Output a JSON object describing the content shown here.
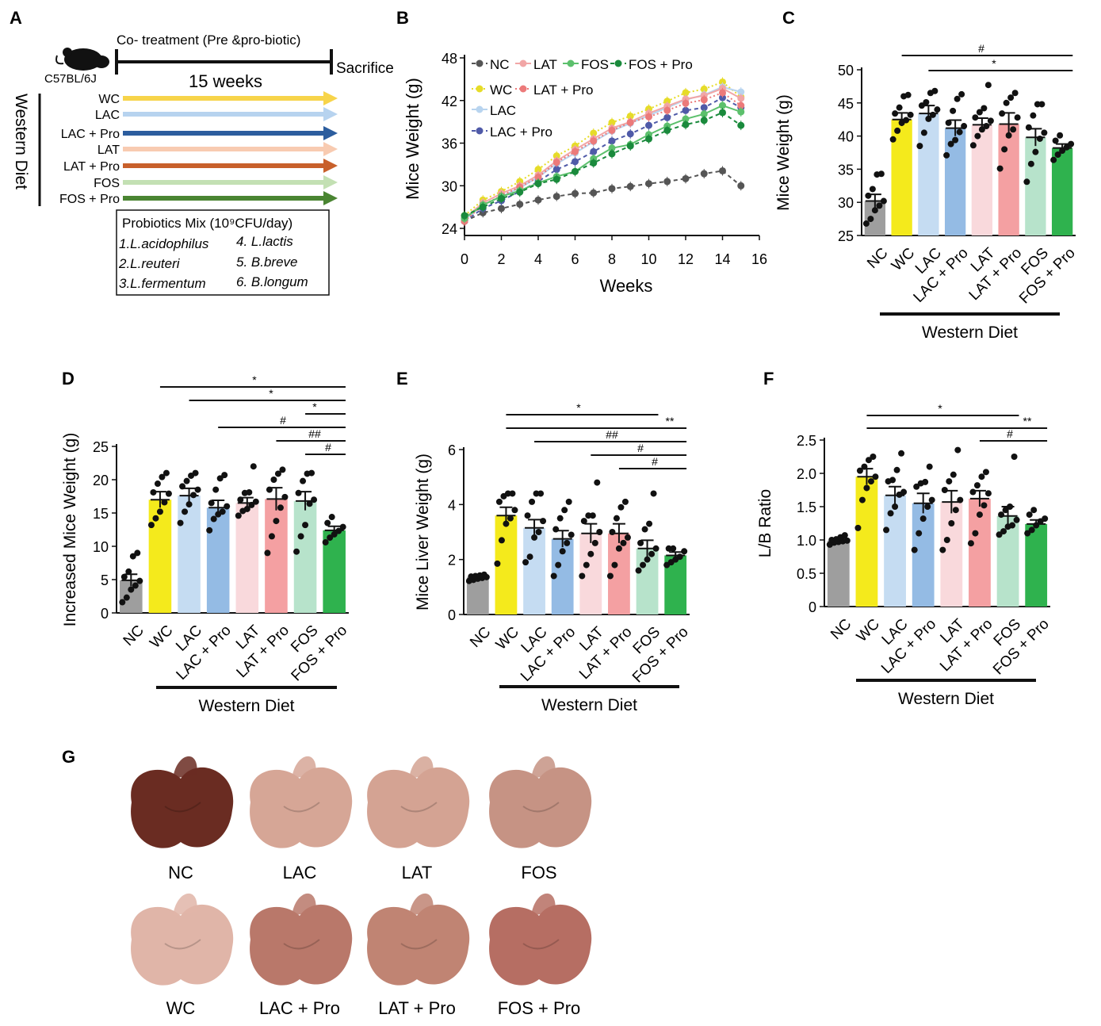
{
  "panels": {
    "A": "A",
    "B": "B",
    "C": "C",
    "D": "D",
    "E": "E",
    "F": "F",
    "G": "G"
  },
  "panel_a": {
    "strain": "C57BL/6J",
    "treatment_label": "Co- treatment (Pre &pro-biotic)",
    "duration": "15 weeks",
    "endpoint": "Sacrifice",
    "diet": "Western Diet",
    "groups": [
      {
        "name": "WC",
        "color": "#f7d44a"
      },
      {
        "name": "LAC",
        "color": "#b7d3ef"
      },
      {
        "name": "LAC + Pro",
        "color": "#2c5d9e"
      },
      {
        "name": "LAT",
        "color": "#f8cbb1"
      },
      {
        "name": "LAT + Pro",
        "color": "#c8602b"
      },
      {
        "name": "FOS",
        "color": "#c3e0b3"
      },
      {
        "name": "FOS + Pro",
        "color": "#4a8532"
      }
    ],
    "probiotics_title": "Probiotics Mix (10⁹CFU/day)",
    "probiotics": [
      "1.L.acidophilus",
      "2.L.reuteri",
      "3.L.fermentum",
      "4. L.lactis",
      "5. B.breve",
      "6. B.longum"
    ]
  },
  "chart_data": [
    {
      "panel": "B",
      "type": "line",
      "xlabel": "Weeks",
      "ylabel": "Mice Weight (g)",
      "xlim": [
        0,
        16
      ],
      "ylim": [
        23,
        48
      ],
      "xticks": [
        0,
        2,
        4,
        6,
        8,
        10,
        12,
        14,
        16
      ],
      "yticks": [
        24,
        30,
        36,
        42,
        48
      ],
      "x": [
        0,
        1,
        2,
        3,
        4,
        5,
        6,
        7,
        8,
        9,
        10,
        11,
        12,
        13,
        14,
        15
      ],
      "series": [
        {
          "name": "NC",
          "color": "#555555",
          "dash": "5,4",
          "values": [
            25.0,
            26.2,
            26.8,
            27.4,
            28.0,
            28.5,
            28.9,
            29.0,
            29.6,
            29.9,
            30.3,
            30.6,
            31.0,
            31.7,
            32.1,
            30.0
          ]
        },
        {
          "name": "WC",
          "color": "#e6dc28",
          "dash": "2,3",
          "values": [
            25.8,
            28.0,
            29.2,
            30.6,
            32.3,
            34.2,
            35.6,
            37.4,
            38.9,
            39.8,
            40.8,
            41.9,
            43.1,
            43.6,
            44.6,
            42.5
          ]
        },
        {
          "name": "LAC",
          "color": "#b8d4ef",
          "dash": "",
          "values": [
            25.2,
            27.3,
            28.5,
            29.7,
            31.2,
            33.1,
            34.6,
            36.2,
            37.7,
            38.8,
            39.9,
            41.0,
            42.1,
            42.8,
            43.9,
            43.2
          ]
        },
        {
          "name": "LAC + Pro",
          "color": "#4f5aa8",
          "dash": "5,4",
          "values": [
            25.0,
            26.8,
            27.9,
            29.2,
            30.6,
            32.3,
            33.4,
            34.8,
            36.3,
            37.3,
            38.5,
            39.6,
            40.6,
            41.0,
            42.4,
            41.0
          ]
        },
        {
          "name": "LAT",
          "color": "#f1a6a6",
          "dash": "",
          "values": [
            25.4,
            27.6,
            28.9,
            30.0,
            31.5,
            33.5,
            35.1,
            36.6,
            38.1,
            39.0,
            40.2,
            41.2,
            42.2,
            42.7,
            43.7,
            42.3
          ]
        },
        {
          "name": "LAT + Pro",
          "color": "#ec7a7a",
          "dash": "2,3",
          "values": [
            25.0,
            27.3,
            28.6,
            29.8,
            31.2,
            33.3,
            34.8,
            36.3,
            37.8,
            38.9,
            39.7,
            40.6,
            41.6,
            42.1,
            43.1,
            41.3
          ]
        },
        {
          "name": "FOS",
          "color": "#5cc06c",
          "dash": "",
          "values": [
            25.4,
            27.3,
            28.5,
            29.3,
            30.4,
            31.3,
            32.0,
            33.8,
            35.3,
            35.8,
            37.2,
            38.4,
            39.4,
            40.1,
            41.3,
            40.4
          ]
        },
        {
          "name": "FOS + Pro",
          "color": "#1a8a3c",
          "dash": "5,4",
          "values": [
            25.8,
            27.0,
            28.2,
            29.1,
            30.3,
            30.9,
            32.0,
            33.2,
            34.5,
            35.6,
            36.6,
            37.8,
            38.6,
            39.2,
            40.3,
            38.5
          ]
        }
      ],
      "legend": "top-left"
    },
    {
      "panel": "C",
      "type": "bar",
      "ylabel": "Mice Weight (g)",
      "ylim": [
        25,
        50
      ],
      "yticks": [
        25,
        30,
        35,
        40,
        45,
        50
      ],
      "categories": [
        "NC",
        "WC",
        "LAC",
        "LAC + Pro",
        "LAT",
        "LAT + Pro",
        "FOS",
        "FOS + Pro"
      ],
      "values": [
        30.2,
        42.5,
        43.4,
        41.2,
        41.7,
        41.8,
        39.8,
        38.2
      ],
      "sem": [
        1.0,
        1.0,
        1.2,
        1.2,
        1.0,
        1.7,
        1.3,
        0.6
      ],
      "points": [
        [
          26.8,
          27.5,
          28.8,
          29.5,
          30.2,
          31.0,
          32.0,
          34.2,
          34.3
        ],
        [
          39.5,
          40.8,
          42.0,
          42.4,
          43.2,
          43.4,
          44.3,
          46.0,
          46.2
        ],
        [
          38.5,
          40.5,
          42.6,
          43.2,
          44.0,
          44.6,
          45.1,
          46.5,
          46.8
        ],
        [
          37.1,
          38.8,
          39.4,
          40.6,
          41.5,
          42.0,
          43.8,
          45.6,
          46.3
        ],
        [
          38.6,
          40.0,
          41.0,
          41.5,
          42.3,
          42.8,
          43.6,
          44.2,
          47.7
        ],
        [
          35.1,
          38.0,
          40.1,
          41.0,
          42.8,
          43.4,
          45.0,
          45.8,
          46.5
        ],
        [
          33.1,
          35.8,
          37.6,
          39.6,
          40.5,
          41.3,
          43.1,
          44.8,
          44.8
        ],
        [
          36.4,
          37.2,
          37.8,
          38.3,
          38.8,
          39.3,
          40.1
        ]
      ],
      "colors": [
        "#9e9e9e",
        "#f4ea1c",
        "#c5dcf2",
        "#94bbe4",
        "#f9d9dc",
        "#f4a0a2",
        "#b7e3cb",
        "#2fb24e"
      ],
      "group_label": "Western Diet",
      "annotations": [
        {
          "from": 1,
          "to": 7,
          "label": "#"
        },
        {
          "from": 2,
          "to": 7,
          "label": "*"
        }
      ]
    },
    {
      "panel": "D",
      "type": "bar",
      "ylabel": "Increased Mice Weight  (g)",
      "ylim": [
        0,
        25
      ],
      "yticks": [
        0,
        5,
        10,
        15,
        20,
        25
      ],
      "categories": [
        "NC",
        "WC",
        "LAC",
        "LAC + Pro",
        "LAT",
        "LAT + Pro",
        "FOS",
        "FOS + Pro"
      ],
      "values": [
        4.9,
        17.0,
        17.6,
        15.8,
        16.5,
        17.1,
        16.8,
        12.4
      ],
      "sem": [
        0.9,
        1.2,
        1.1,
        1.1,
        0.8,
        1.7,
        1.4,
        0.6
      ],
      "points": [
        [
          1.6,
          2.3,
          3.5,
          4.1,
          4.8,
          5.4,
          6.2,
          8.5,
          9.0
        ],
        [
          13.2,
          14.2,
          15.2,
          16.6,
          17.9,
          18.1,
          19.4,
          20.4,
          21.0
        ],
        [
          13.5,
          15.2,
          16.3,
          17.7,
          18.5,
          19.0,
          19.8,
          20.6,
          21.0
        ],
        [
          12.4,
          14.1,
          14.8,
          15.2,
          16.0,
          16.5,
          18.5,
          20.2,
          20.7
        ],
        [
          14.6,
          15.3,
          15.6,
          16.2,
          16.7,
          17.0,
          18.0,
          18.1,
          22.0
        ],
        [
          9.0,
          11.5,
          13.8,
          15.8,
          17.4,
          18.5,
          20.0,
          20.9,
          21.5
        ],
        [
          9.2,
          11.5,
          13.2,
          16.4,
          17.0,
          18.0,
          19.8,
          20.9,
          21.0
        ],
        [
          10.6,
          11.3,
          11.8,
          12.3,
          12.9,
          13.5,
          14.4
        ]
      ],
      "colors": [
        "#9e9e9e",
        "#f4ea1c",
        "#c5dcf2",
        "#94bbe4",
        "#f9d9dc",
        "#f4a0a2",
        "#b7e3cb",
        "#2fb24e"
      ],
      "group_label": "Western Diet",
      "annotations": [
        {
          "from": 1,
          "to": 7,
          "label": "*"
        },
        {
          "from": 2,
          "to": 7,
          "label": "*"
        },
        {
          "from": 6,
          "to": 7,
          "label": "*"
        },
        {
          "from": 3,
          "to": 7,
          "label": "#"
        },
        {
          "from": 5,
          "to": 7,
          "label": "##"
        },
        {
          "from": 6,
          "to": 7,
          "label": "#"
        }
      ]
    },
    {
      "panel": "E",
      "type": "bar",
      "ylabel": "Mice Liver Weight  (g)",
      "ylim": [
        0,
        6
      ],
      "yticks": [
        0,
        2,
        4,
        6
      ],
      "categories": [
        "NC",
        "WC",
        "LAC",
        "LAC + Pro",
        "LAT",
        "LAT + Pro",
        "FOS",
        "FOS + Pro"
      ],
      "values": [
        1.35,
        3.6,
        3.15,
        2.75,
        2.95,
        2.95,
        2.4,
        2.15
      ],
      "sem": [
        0.05,
        0.3,
        0.3,
        0.3,
        0.35,
        0.35,
        0.3,
        0.12
      ],
      "points": [
        [
          1.22,
          1.26,
          1.3,
          1.33,
          1.36,
          1.38,
          1.4,
          1.42,
          1.45
        ],
        [
          1.85,
          2.7,
          3.3,
          3.5,
          3.8,
          4.1,
          4.3,
          4.4,
          4.4
        ],
        [
          1.9,
          2.1,
          2.8,
          3.0,
          3.4,
          3.6,
          4.1,
          4.4,
          4.4
        ],
        [
          1.4,
          1.8,
          2.3,
          2.6,
          2.9,
          3.1,
          3.5,
          3.8,
          4.1
        ],
        [
          1.4,
          1.8,
          2.2,
          2.6,
          3.0,
          3.4,
          3.6,
          3.6,
          4.8
        ],
        [
          1.4,
          1.8,
          2.4,
          2.6,
          2.8,
          3.0,
          3.5,
          3.9,
          4.1
        ],
        [
          1.6,
          1.8,
          2.0,
          2.2,
          2.4,
          2.6,
          3.1,
          3.3,
          4.4
        ],
        [
          1.8,
          1.9,
          2.0,
          2.1,
          2.3,
          2.4,
          2.4
        ]
      ],
      "colors": [
        "#9e9e9e",
        "#f4ea1c",
        "#c5dcf2",
        "#94bbe4",
        "#f9d9dc",
        "#f4a0a2",
        "#b7e3cb",
        "#2fb24e"
      ],
      "group_label": "Western Diet",
      "annotations": [
        {
          "from": 1,
          "to": 6,
          "label": "*"
        },
        {
          "from": 1,
          "to": 7,
          "label": "**"
        },
        {
          "from": 2,
          "to": 7,
          "label": "##"
        },
        {
          "from": 4,
          "to": 7,
          "label": "#"
        },
        {
          "from": 5,
          "to": 7,
          "label": "#"
        }
      ]
    },
    {
      "panel": "F",
      "type": "bar",
      "ylabel": "L/B Ratio",
      "ylim": [
        0,
        2.5
      ],
      "yticks": [
        0,
        0.5,
        1.0,
        1.5,
        2.0,
        2.5
      ],
      "ytick_labels": [
        "0",
        "0.5",
        "1.0",
        "1.5",
        "2.0",
        "2.5"
      ],
      "categories": [
        "NC",
        "WC",
        "LAC",
        "LAC + Pro",
        "LAT",
        "LAT + Pro",
        "FOS",
        "FOS + Pro"
      ],
      "values": [
        0.99,
        1.95,
        1.67,
        1.55,
        1.57,
        1.62,
        1.36,
        1.24
      ],
      "sem": [
        0.03,
        0.12,
        0.13,
        0.15,
        0.17,
        0.12,
        0.14,
        0.06
      ],
      "points": [
        [
          0.93,
          0.96,
          0.97,
          0.98,
          0.99,
          1.0,
          1.01,
          1.04,
          1.07
        ],
        [
          1.18,
          1.6,
          1.78,
          1.88,
          1.95,
          2.04,
          2.1,
          2.2,
          2.25
        ],
        [
          1.15,
          1.4,
          1.5,
          1.68,
          1.72,
          1.88,
          1.9,
          2.05,
          2.3
        ],
        [
          0.85,
          1.1,
          1.32,
          1.5,
          1.6,
          1.8,
          1.85,
          1.87,
          2.1
        ],
        [
          0.85,
          1.0,
          1.25,
          1.45,
          1.6,
          1.75,
          1.88,
          1.98,
          2.35
        ],
        [
          0.95,
          1.1,
          1.38,
          1.52,
          1.7,
          1.72,
          1.82,
          1.95,
          2.02
        ],
        [
          1.08,
          1.13,
          1.2,
          1.22,
          1.3,
          1.38,
          1.45,
          1.5,
          2.25
        ],
        [
          1.1,
          1.15,
          1.22,
          1.28,
          1.32,
          1.38,
          1.45
        ]
      ],
      "colors": [
        "#9e9e9e",
        "#f4ea1c",
        "#c5dcf2",
        "#94bbe4",
        "#f9d9dc",
        "#f4a0a2",
        "#b7e3cb",
        "#2fb24e"
      ],
      "group_label": "Western Diet",
      "annotations": [
        {
          "from": 1,
          "to": 6,
          "label": "*"
        },
        {
          "from": 1,
          "to": 7,
          "label": "**"
        },
        {
          "from": 5,
          "to": 7,
          "label": "#"
        }
      ]
    }
  ],
  "panel_g": {
    "livers": [
      {
        "label": "NC",
        "color": "#6a2c22"
      },
      {
        "label": "LAC",
        "color": "#d6a696"
      },
      {
        "label": "LAT",
        "color": "#d4a393"
      },
      {
        "label": "FOS",
        "color": "#c69384"
      },
      {
        "label": "WC",
        "color": "#e0b5a8"
      },
      {
        "label": "LAC + Pro",
        "color": "#b9786a"
      },
      {
        "label": "LAT + Pro",
        "color": "#c08473"
      },
      {
        "label": "FOS + Pro",
        "color": "#b66e63"
      }
    ]
  }
}
